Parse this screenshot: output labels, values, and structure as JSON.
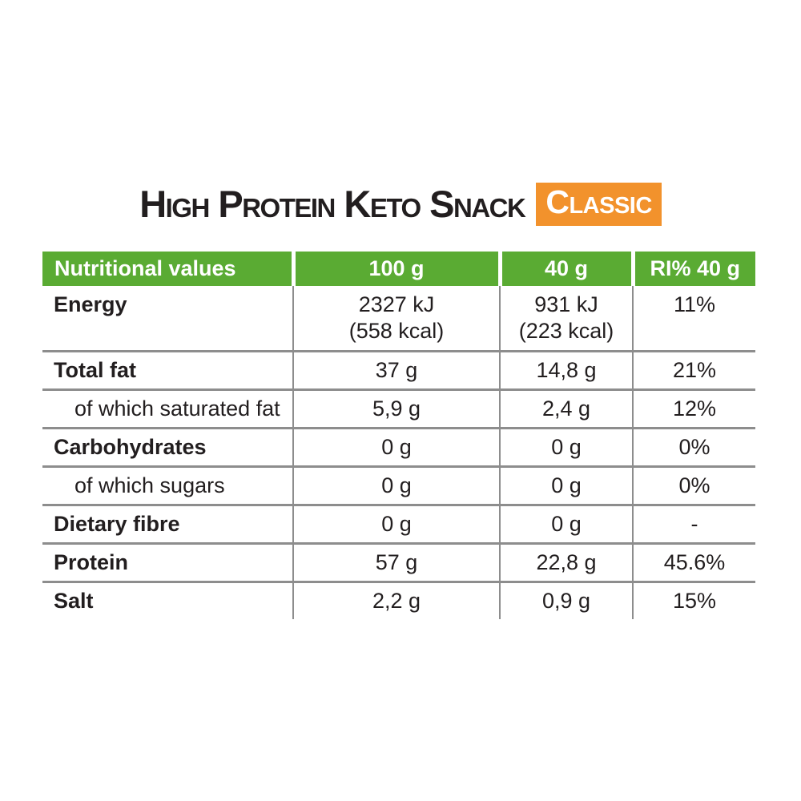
{
  "title": {
    "text": "High Protein Keto Snack",
    "badge": "Classic"
  },
  "colors": {
    "green": "#5aab33",
    "orange": "#f2922c",
    "line": "#8d8d8d",
    "text": "#221e1f"
  },
  "table": {
    "headers": [
      "Nutritional values",
      "100 g",
      "40 g",
      "RI% 40 g"
    ],
    "rows": [
      {
        "label": "Energy",
        "per100_lines": [
          "2327 kJ",
          "(558 kcal)"
        ],
        "per40_lines": [
          "931 kJ",
          "(223 kcal)"
        ],
        "ri": "11%"
      },
      {
        "label": "Total fat",
        "per100": "37 g",
        "per40": "14,8 g",
        "ri": "21%"
      },
      {
        "label": "of which saturated fat",
        "per100": "5,9 g",
        "per40": "2,4 g",
        "ri": "12%"
      },
      {
        "label": "Carbohydrates",
        "per100": "0 g",
        "per40": "0 g",
        "ri": "0%"
      },
      {
        "label": "of which sugars",
        "per100": "0 g",
        "per40": "0 g",
        "ri": "0%"
      },
      {
        "label": "Dietary fibre",
        "per100": "0 g",
        "per40": "0 g",
        "ri": "-"
      },
      {
        "label": "Protein",
        "per100": "57 g",
        "per40": "22,8 g",
        "ri": "45.6%"
      },
      {
        "label": "Salt",
        "per100": "2,2 g",
        "per40": "0,9 g",
        "ri": "15%"
      }
    ]
  }
}
